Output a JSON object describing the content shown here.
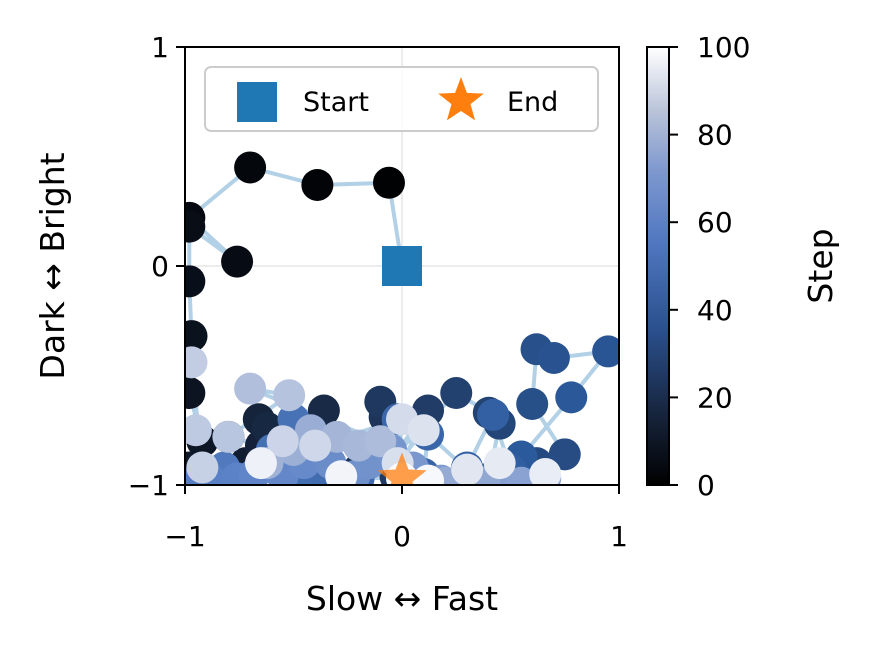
{
  "chart_data": {
    "type": "scatter",
    "xlabel": "Slow ↔ Fast",
    "ylabel": "Dark ↔ Bright",
    "xlim": [
      -1,
      1
    ],
    "ylim": [
      -1,
      1
    ],
    "xticks": [
      "−1",
      "0",
      "1"
    ],
    "yticks": [
      "−1",
      "0",
      "1"
    ],
    "grid": true,
    "legend": {
      "placement": "top-center",
      "entries": [
        {
          "label": "Start",
          "marker": "square",
          "color": "#1f77b4"
        },
        {
          "label": "End",
          "marker": "star",
          "color": "#ff7f0e"
        }
      ]
    },
    "colorbar": {
      "label": "Step",
      "ticks": [
        "0",
        "20",
        "40",
        "60",
        "80",
        "100"
      ],
      "range": [
        0,
        100
      ],
      "colormap": [
        "#000000",
        "#1a2c4a",
        "#2b5a9c",
        "#5b82c7",
        "#a8b8d8",
        "#ffffff"
      ]
    },
    "path_color": "#7fb0d6",
    "start": {
      "x": 0.0,
      "y": 0.0
    },
    "end": {
      "x": 0.0,
      "y": -0.97
    },
    "trajectory": [
      {
        "step": 0,
        "x": 0.0,
        "y": 0.0
      },
      {
        "step": 1,
        "x": -0.06,
        "y": 0.38
      },
      {
        "step": 2,
        "x": -0.39,
        "y": 0.37
      },
      {
        "step": 3,
        "x": -0.7,
        "y": 0.45
      },
      {
        "step": 4,
        "x": -0.98,
        "y": 0.22
      },
      {
        "step": 5,
        "x": -0.76,
        "y": 0.02
      },
      {
        "step": 6,
        "x": -0.98,
        "y": 0.18
      },
      {
        "step": 7,
        "x": -0.98,
        "y": -0.07
      },
      {
        "step": 8,
        "x": -0.97,
        "y": -0.32
      },
      {
        "step": 9,
        "x": -0.98,
        "y": -0.58
      },
      {
        "step": 10,
        "x": -0.92,
        "y": -0.8
      },
      {
        "step": 11,
        "x": -0.98,
        "y": -0.92
      },
      {
        "step": 12,
        "x": -0.85,
        "y": -0.99
      },
      {
        "step": 13,
        "x": -0.72,
        "y": -0.9
      },
      {
        "step": 14,
        "x": -0.8,
        "y": -0.78
      },
      {
        "step": 15,
        "x": -0.65,
        "y": -0.82
      },
      {
        "step": 16,
        "x": -0.66,
        "y": -0.7
      },
      {
        "step": 17,
        "x": -0.55,
        "y": -0.77
      },
      {
        "step": 18,
        "x": -0.62,
        "y": -0.74
      },
      {
        "step": 19,
        "x": -0.36,
        "y": -0.66
      },
      {
        "step": 20,
        "x": -0.5,
        "y": -0.93
      },
      {
        "step": 21,
        "x": -0.38,
        "y": -0.86
      },
      {
        "step": 22,
        "x": -0.32,
        "y": -0.95
      },
      {
        "step": 23,
        "x": -0.2,
        "y": -0.93
      },
      {
        "step": 24,
        "x": -0.08,
        "y": -0.69
      },
      {
        "step": 25,
        "x": -0.1,
        "y": -0.62
      },
      {
        "step": 26,
        "x": -0.03,
        "y": -0.96
      },
      {
        "step": 27,
        "x": 0.12,
        "y": -0.66
      },
      {
        "step": 28,
        "x": -0.05,
        "y": -0.88
      },
      {
        "step": 29,
        "x": 0.25,
        "y": -0.58
      },
      {
        "step": 30,
        "x": 0.4,
        "y": -0.67
      },
      {
        "step": 31,
        "x": 0.45,
        "y": -0.72
      },
      {
        "step": 32,
        "x": 0.4,
        "y": -0.97
      },
      {
        "step": 33,
        "x": 0.62,
        "y": -0.9
      },
      {
        "step": 34,
        "x": 0.75,
        "y": -0.86
      },
      {
        "step": 35,
        "x": 0.6,
        "y": -0.63
      },
      {
        "step": 36,
        "x": 0.62,
        "y": -0.38
      },
      {
        "step": 37,
        "x": 0.7,
        "y": -0.42
      },
      {
        "step": 38,
        "x": 0.95,
        "y": -0.39
      },
      {
        "step": 39,
        "x": 0.78,
        "y": -0.6
      },
      {
        "step": 40,
        "x": 0.55,
        "y": -0.87
      },
      {
        "step": 41,
        "x": 0.65,
        "y": -0.96
      },
      {
        "step": 42,
        "x": 0.5,
        "y": -0.93
      },
      {
        "step": 43,
        "x": 0.42,
        "y": -0.68
      },
      {
        "step": 44,
        "x": 0.3,
        "y": -0.92
      },
      {
        "step": 45,
        "x": 0.1,
        "y": -0.95
      },
      {
        "step": 46,
        "x": 0.12,
        "y": -0.77
      },
      {
        "step": 47,
        "x": -0.02,
        "y": -0.7
      },
      {
        "step": 48,
        "x": -0.2,
        "y": -0.97
      },
      {
        "step": 49,
        "x": -0.35,
        "y": -0.99
      },
      {
        "step": 50,
        "x": -0.48,
        "y": -0.95
      },
      {
        "step": 51,
        "x": -0.6,
        "y": -0.84
      },
      {
        "step": 52,
        "x": -0.5,
        "y": -0.7
      },
      {
        "step": 53,
        "x": -0.4,
        "y": -0.8
      },
      {
        "step": 54,
        "x": -0.58,
        "y": -0.9
      },
      {
        "step": 55,
        "x": -0.7,
        "y": -0.98
      },
      {
        "step": 56,
        "x": -0.82,
        "y": -0.92
      },
      {
        "step": 57,
        "x": -0.9,
        "y": -0.97
      },
      {
        "step": 58,
        "x": -0.96,
        "y": -0.99
      },
      {
        "step": 59,
        "x": -0.88,
        "y": -0.98
      },
      {
        "step": 60,
        "x": -0.76,
        "y": -0.97
      },
      {
        "step": 61,
        "x": -0.68,
        "y": -0.95
      },
      {
        "step": 62,
        "x": -0.55,
        "y": -0.96
      },
      {
        "step": 63,
        "x": -0.45,
        "y": -0.9
      },
      {
        "step": 64,
        "x": -0.33,
        "y": -0.9
      },
      {
        "step": 65,
        "x": -0.22,
        "y": -0.96
      },
      {
        "step": 66,
        "x": -0.15,
        "y": -0.9
      },
      {
        "step": 67,
        "x": -0.05,
        "y": -0.84
      },
      {
        "step": 68,
        "x": 0.05,
        "y": -0.92
      },
      {
        "step": 69,
        "x": 0.18,
        "y": -0.98
      },
      {
        "step": 70,
        "x": 0.32,
        "y": -0.97
      },
      {
        "step": 71,
        "x": 0.44,
        "y": -0.95
      },
      {
        "step": 72,
        "x": 0.55,
        "y": -0.99
      },
      {
        "step": 73,
        "x": 0.66,
        "y": -0.97
      },
      {
        "step": 74,
        "x": 0.38,
        "y": -0.99
      },
      {
        "step": 75,
        "x": 0.2,
        "y": -0.99
      },
      {
        "step": 76,
        "x": -0.42,
        "y": -0.75
      },
      {
        "step": 77,
        "x": -0.5,
        "y": -0.84
      },
      {
        "step": 78,
        "x": -0.62,
        "y": -0.9
      },
      {
        "step": 79,
        "x": -0.3,
        "y": -0.78
      },
      {
        "step": 80,
        "x": -0.2,
        "y": -0.82
      },
      {
        "step": 81,
        "x": -0.1,
        "y": -0.8
      },
      {
        "step": 82,
        "x": -0.7,
        "y": -0.56
      },
      {
        "step": 83,
        "x": -0.52,
        "y": -0.59
      },
      {
        "step": 84,
        "x": -0.8,
        "y": -0.78
      },
      {
        "step": 85,
        "x": -0.95,
        "y": -0.75
      },
      {
        "step": 86,
        "x": -0.97,
        "y": -0.44
      },
      {
        "step": 87,
        "x": -0.92,
        "y": -0.92
      },
      {
        "step": 88,
        "x": -0.55,
        "y": -0.8
      },
      {
        "step": 89,
        "x": -0.4,
        "y": -0.82
      },
      {
        "step": 90,
        "x": 0.0,
        "y": -0.7
      },
      {
        "step": 91,
        "x": -0.02,
        "y": -0.9
      },
      {
        "step": 92,
        "x": 0.1,
        "y": -0.75
      },
      {
        "step": 93,
        "x": 0.3,
        "y": -0.93
      },
      {
        "step": 94,
        "x": 0.45,
        "y": -0.9
      },
      {
        "step": 95,
        "x": 0.66,
        "y": -0.95
      },
      {
        "step": 96,
        "x": -0.65,
        "y": -0.9
      },
      {
        "step": 97,
        "x": -0.28,
        "y": -0.96
      },
      {
        "step": 98,
        "x": 0.12,
        "y": -0.98
      },
      {
        "step": 99,
        "x": 0.0,
        "y": -0.97
      }
    ]
  }
}
